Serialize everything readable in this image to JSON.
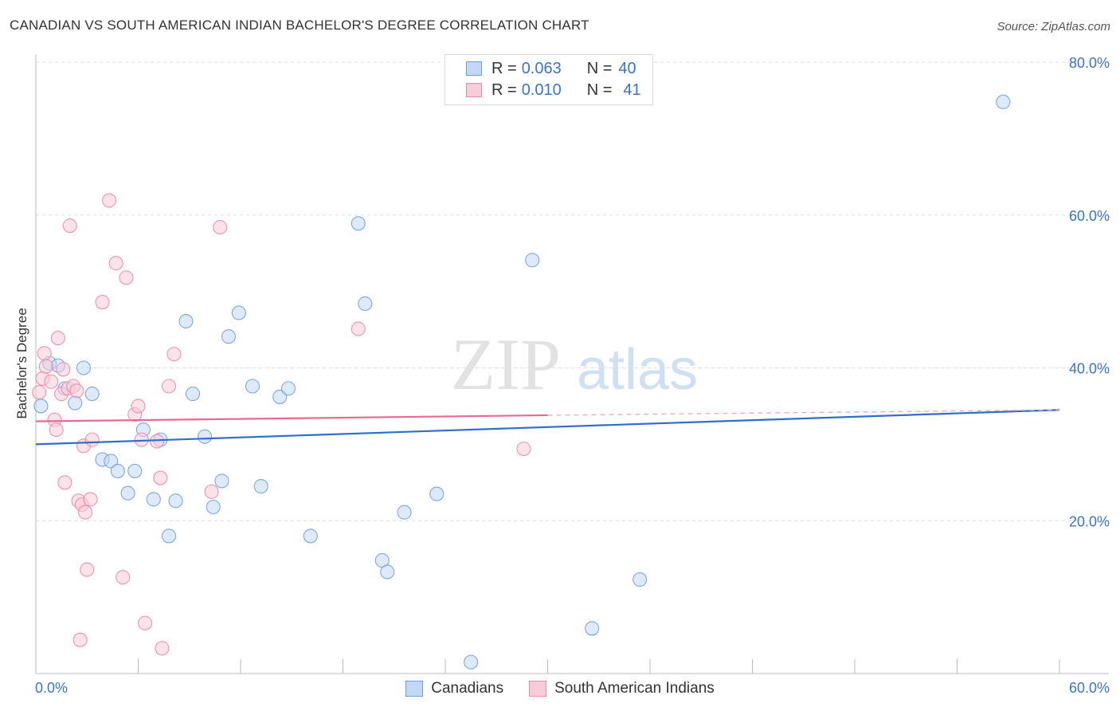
{
  "title": "CANADIAN VS SOUTH AMERICAN INDIAN BACHELOR'S DEGREE CORRELATION CHART",
  "source": "Source: ZipAtlas.com",
  "watermark": {
    "zip": "ZIP",
    "atlas": "atlas"
  },
  "legend_stats": [
    {
      "r_label": "R =",
      "r_value": "0.063",
      "n_label": "N =",
      "n_value": "40",
      "color": "#a9c8f5"
    },
    {
      "r_label": "R =",
      "r_value": "0.010",
      "n_label": "N =",
      "n_value": "41",
      "color": "#f6b8ca"
    }
  ],
  "chart_data": {
    "type": "scatter",
    "title": "CANADIAN VS SOUTH AMERICAN INDIAN BACHELOR'S DEGREE CORRELATION CHART",
    "xlabel": "",
    "ylabel": "Bachelor's Degree",
    "xlim": [
      0,
      60
    ],
    "ylim": [
      0,
      80
    ],
    "x_tick_labels": [
      "0.0%",
      "60.0%"
    ],
    "y_tick_labels": [
      "20.0%",
      "40.0%",
      "60.0%",
      "80.0%"
    ],
    "y_ticks": [
      20,
      40,
      60,
      80
    ],
    "grid": true,
    "legend_position": "bottom",
    "series": [
      {
        "name": "Canadians",
        "color": "#6f9fe0",
        "fill": "#c3d8f6",
        "trend": {
          "x": [
            0,
            60
          ],
          "y": [
            30.0,
            34.5
          ]
        },
        "points": [
          [
            0.3,
            35.0
          ],
          [
            0.8,
            40.6
          ],
          [
            1.3,
            40.3
          ],
          [
            1.7,
            37.3
          ],
          [
            2.3,
            35.4
          ],
          [
            2.8,
            40.0
          ],
          [
            3.3,
            36.6
          ],
          [
            3.9,
            28.0
          ],
          [
            4.4,
            27.8
          ],
          [
            4.8,
            26.5
          ],
          [
            5.4,
            23.6
          ],
          [
            5.8,
            26.5
          ],
          [
            6.3,
            31.9
          ],
          [
            6.9,
            22.8
          ],
          [
            7.3,
            30.6
          ],
          [
            7.8,
            18.0
          ],
          [
            8.2,
            22.6
          ],
          [
            8.8,
            46.1
          ],
          [
            9.2,
            36.6
          ],
          [
            9.9,
            31.0
          ],
          [
            10.4,
            21.8
          ],
          [
            10.9,
            25.2
          ],
          [
            11.3,
            44.1
          ],
          [
            11.9,
            47.2
          ],
          [
            12.7,
            37.6
          ],
          [
            13.2,
            24.5
          ],
          [
            14.3,
            36.2
          ],
          [
            14.8,
            37.3
          ],
          [
            16.1,
            18.0
          ],
          [
            18.9,
            58.9
          ],
          [
            19.3,
            48.4
          ],
          [
            20.3,
            14.8
          ],
          [
            20.6,
            13.3
          ],
          [
            21.6,
            21.1
          ],
          [
            23.5,
            23.5
          ],
          [
            29.1,
            54.1
          ],
          [
            32.6,
            5.9
          ],
          [
            35.4,
            12.3
          ],
          [
            56.7,
            74.8
          ],
          [
            25.5,
            1.5
          ]
        ]
      },
      {
        "name": "South American Indians",
        "color": "#ec8aa6",
        "fill": "#f9ccd9",
        "trend": {
          "x": [
            0,
            30
          ],
          "y": [
            33.0,
            33.8
          ],
          "dash_to": [
            60,
            34.5
          ]
        },
        "points": [
          [
            0.2,
            36.8
          ],
          [
            0.4,
            38.6
          ],
          [
            0.6,
            40.2
          ],
          [
            0.9,
            38.2
          ],
          [
            1.1,
            33.2
          ],
          [
            1.2,
            31.9
          ],
          [
            1.3,
            43.9
          ],
          [
            1.5,
            36.6
          ],
          [
            1.6,
            39.8
          ],
          [
            1.7,
            25.0
          ],
          [
            1.9,
            37.3
          ],
          [
            2.0,
            58.6
          ],
          [
            2.2,
            37.6
          ],
          [
            2.4,
            37.0
          ],
          [
            2.5,
            22.6
          ],
          [
            2.6,
            4.4
          ],
          [
            2.7,
            22.1
          ],
          [
            2.8,
            29.8
          ],
          [
            2.9,
            21.1
          ],
          [
            3.0,
            13.6
          ],
          [
            3.2,
            22.8
          ],
          [
            3.3,
            30.6
          ],
          [
            3.9,
            48.6
          ],
          [
            4.3,
            61.9
          ],
          [
            4.7,
            53.7
          ],
          [
            5.1,
            12.6
          ],
          [
            5.3,
            51.8
          ],
          [
            5.8,
            33.9
          ],
          [
            6.2,
            30.6
          ],
          [
            6.4,
            6.6
          ],
          [
            7.1,
            30.4
          ],
          [
            7.3,
            25.6
          ],
          [
            7.4,
            3.3
          ],
          [
            7.8,
            37.6
          ],
          [
            8.1,
            41.8
          ],
          [
            10.3,
            23.8
          ],
          [
            10.8,
            58.4
          ],
          [
            18.9,
            45.1
          ],
          [
            28.6,
            29.4
          ],
          [
            6.0,
            35.0
          ],
          [
            0.5,
            41.9
          ]
        ]
      }
    ]
  }
}
